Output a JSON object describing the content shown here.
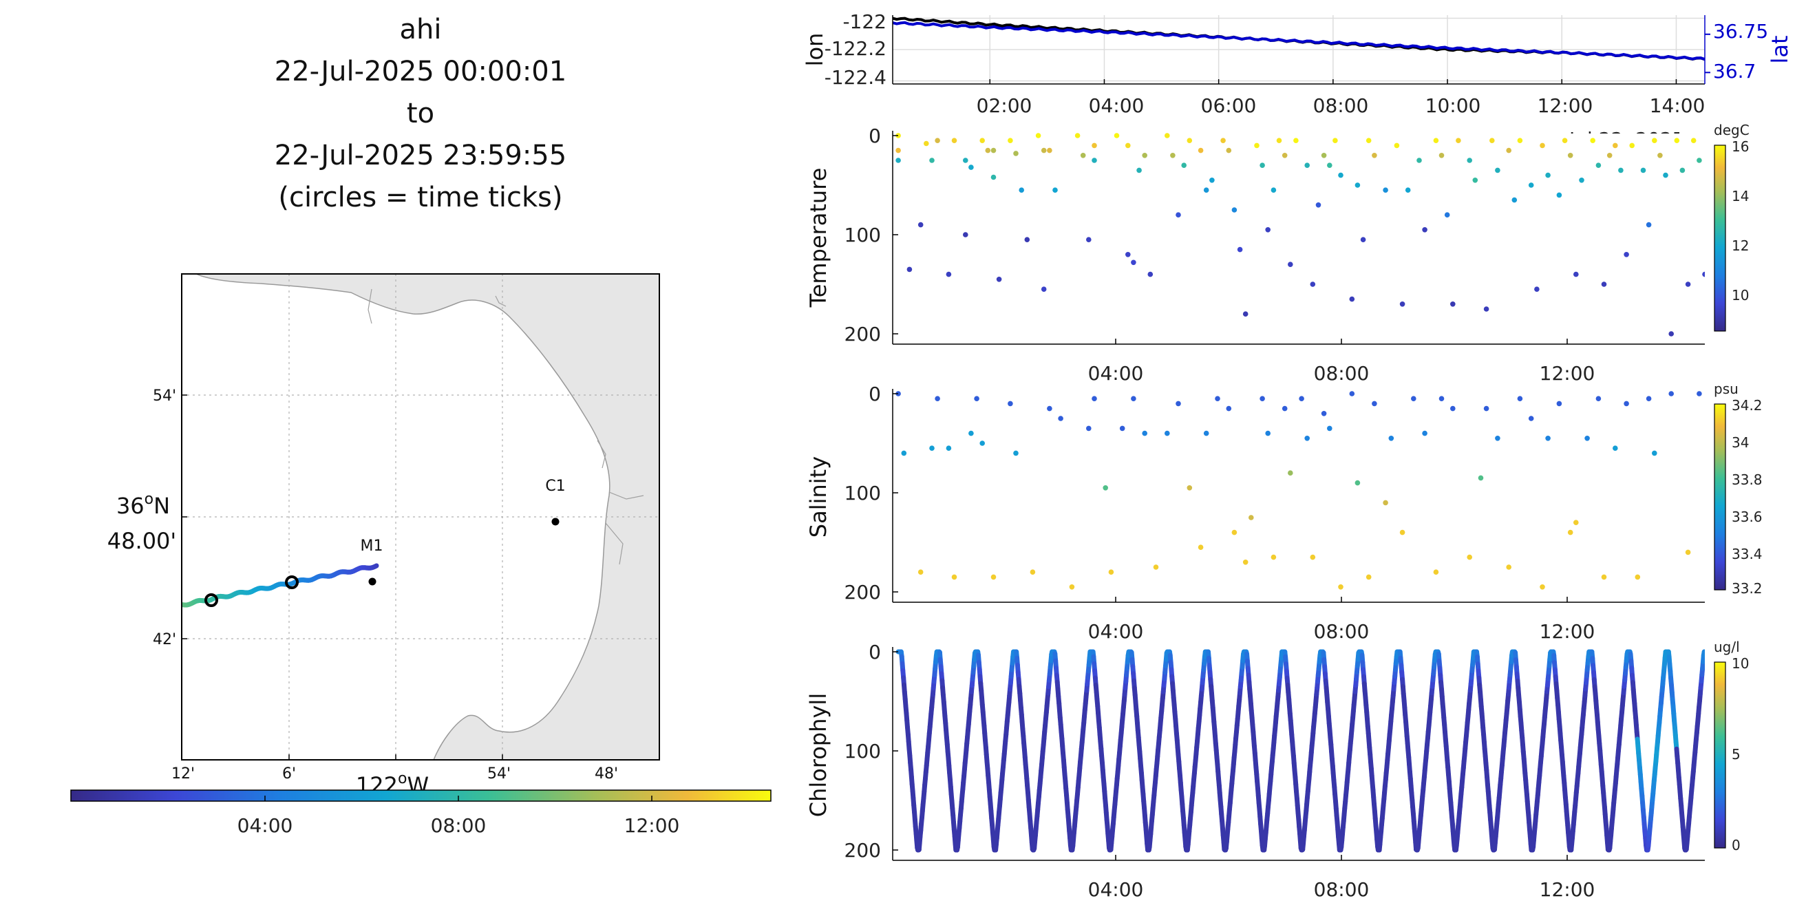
{
  "map_panel": {
    "title_lines": [
      "ahi",
      "22-Jul-2025 00:00:01",
      "to",
      "22-Jul-2025 23:59:55",
      "(circles = time ticks)"
    ],
    "lon_ticks": [
      "12'",
      "6'",
      "54'",
      "48'"
    ],
    "lon_axis_label": "122",
    "lon_axis_suffix": "W",
    "lat_ticks": [
      "54'",
      "42'"
    ],
    "lat_axis_label_line1": "36",
    "lat_axis_label_suffix": "N",
    "lat_axis_label_line2": "48.00'",
    "stations": [
      {
        "label": "M1"
      },
      {
        "label": "C1"
      }
    ],
    "time_colorbar": {
      "ticks": [
        "04:00",
        "08:00",
        "12:00"
      ]
    },
    "colors": {
      "land": "#e6e6e6",
      "coast": "#999999",
      "grid": "#b0b0b0"
    }
  },
  "chart_data": [
    {
      "type": "line",
      "title": "",
      "ylabel": "lon",
      "ylabel_right": "lat",
      "x_tick_labels": [
        "02:00",
        "04:00",
        "06:00",
        "08:00",
        "10:00",
        "12:00",
        "14:00"
      ],
      "x_partial_label": "Jul 22, 2025",
      "y_tick_labels": [
        "-122",
        "-122.2",
        "-122.4"
      ],
      "y_right_tick_labels": [
        "36.75",
        "36.7"
      ],
      "xlim": [
        0.3,
        14.5
      ],
      "ylim": [
        -122.42,
        -121.98
      ],
      "ylim_right": [
        36.685,
        36.775
      ],
      "grid": true,
      "series": [
        {
          "axis": "left",
          "color": "#000000",
          "x": [
            0.3,
            2,
            4,
            6,
            8,
            10,
            12,
            14.5
          ],
          "y": [
            -122.0,
            -122.04,
            -122.08,
            -122.12,
            -122.16,
            -122.2,
            -122.22,
            -122.26
          ]
        },
        {
          "axis": "right",
          "color": "#0000cc",
          "x": [
            0.3,
            2,
            4,
            6,
            8,
            10,
            12,
            14.5
          ],
          "y": [
            36.765,
            36.759,
            36.753,
            36.746,
            36.739,
            36.732,
            36.726,
            36.718
          ]
        }
      ]
    },
    {
      "type": "scatter",
      "ylabel": "Temperature",
      "x_tick_labels": [
        "04:00",
        "08:00",
        "12:00"
      ],
      "y_tick_labels": [
        "0",
        "100",
        "200"
      ],
      "xlim": [
        0,
        14.5
      ],
      "ylim": [
        210,
        0
      ],
      "colorbar": {
        "unit": "degC",
        "ticks": [
          "16",
          "14",
          "12",
          "10"
        ],
        "range": [
          8.5,
          16
        ]
      },
      "points": [
        [
          0.1,
          0,
          15.8
        ],
        [
          0.1,
          15,
          15
        ],
        [
          0.1,
          25,
          12
        ],
        [
          0.3,
          135,
          9.2
        ],
        [
          0.5,
          90,
          9.2
        ],
        [
          0.6,
          8,
          15.5
        ],
        [
          0.7,
          25,
          12.5
        ],
        [
          0.8,
          5,
          14.6
        ],
        [
          1.0,
          140,
          9.3
        ],
        [
          1.1,
          5,
          15.3
        ],
        [
          1.3,
          25,
          12.1
        ],
        [
          1.4,
          32,
          11.8
        ],
        [
          1.3,
          100,
          9.1
        ],
        [
          1.6,
          5,
          15.6
        ],
        [
          1.7,
          15,
          14.5
        ],
        [
          1.8,
          15,
          14.1
        ],
        [
          1.8,
          42,
          12.4
        ],
        [
          1.9,
          145,
          9.2
        ],
        [
          2.1,
          5,
          15.8
        ],
        [
          2.2,
          18,
          14
        ],
        [
          2.3,
          55,
          11.4
        ],
        [
          2.4,
          105,
          9.1
        ],
        [
          2.6,
          0,
          15.9
        ],
        [
          2.7,
          15,
          14.4
        ],
        [
          2.8,
          15,
          14.7
        ],
        [
          2.9,
          55,
          11.7
        ],
        [
          2.7,
          155,
          9.4
        ],
        [
          3.3,
          0,
          15.8
        ],
        [
          3.4,
          20,
          14
        ],
        [
          3.6,
          10,
          15.1
        ],
        [
          3.6,
          25,
          12.1
        ],
        [
          3.5,
          105,
          9.3
        ],
        [
          4.0,
          0,
          15.9
        ],
        [
          4.2,
          10,
          15.5
        ],
        [
          4.5,
          20,
          14
        ],
        [
          4.4,
          35,
          12.2
        ],
        [
          4.2,
          120,
          9.4
        ],
        [
          4.3,
          128,
          9.5
        ],
        [
          4.6,
          140,
          9.3
        ],
        [
          4.9,
          0,
          15.7
        ],
        [
          5.0,
          20,
          14.1
        ],
        [
          5.1,
          80,
          9.8
        ],
        [
          5.2,
          30,
          12.5
        ],
        [
          5.3,
          5,
          15.6
        ],
        [
          5.5,
          15,
          15
        ],
        [
          5.6,
          55,
          11.3
        ],
        [
          5.7,
          45,
          11.6
        ],
        [
          5.9,
          5,
          15.2
        ],
        [
          6.0,
          15,
          14.5
        ],
        [
          6.1,
          75,
          10.9
        ],
        [
          6.2,
          115,
          9.5
        ],
        [
          6.3,
          180,
          9.1
        ],
        [
          6.5,
          10,
          15.8
        ],
        [
          6.6,
          30,
          12.4
        ],
        [
          6.7,
          95,
          9.3
        ],
        [
          6.8,
          55,
          11.8
        ],
        [
          6.9,
          5,
          15.6
        ],
        [
          7.0,
          20,
          14.5
        ],
        [
          7.1,
          130,
          9.3
        ],
        [
          7.2,
          5,
          15.9
        ],
        [
          7.4,
          30,
          12.2
        ],
        [
          7.5,
          150,
          9.3
        ],
        [
          7.6,
          70,
          9.9
        ],
        [
          7.7,
          20,
          13.9
        ],
        [
          7.8,
          30,
          12.6
        ],
        [
          7.9,
          5,
          15.8
        ],
        [
          8.0,
          40,
          11.8
        ],
        [
          8.2,
          165,
          9.2
        ],
        [
          8.3,
          50,
          11.8
        ],
        [
          8.4,
          105,
          9.3
        ],
        [
          8.5,
          5,
          15.8
        ],
        [
          8.6,
          20,
          14.6
        ],
        [
          8.8,
          55,
          11.1
        ],
        [
          9.0,
          10,
          15.8
        ],
        [
          9.1,
          170,
          9.2
        ],
        [
          9.2,
          55,
          11.7
        ],
        [
          9.4,
          25,
          12.5
        ],
        [
          9.5,
          95,
          9.2
        ],
        [
          9.7,
          5,
          15.8
        ],
        [
          9.8,
          20,
          14.3
        ],
        [
          9.9,
          80,
          10.5
        ],
        [
          10.0,
          170,
          9.1
        ],
        [
          10.1,
          5,
          15.3
        ],
        [
          10.3,
          25,
          12.3
        ],
        [
          10.4,
          45,
          12.6
        ],
        [
          10.6,
          175,
          9.2
        ],
        [
          10.7,
          5,
          15.5
        ],
        [
          10.8,
          35,
          12.1
        ],
        [
          11.0,
          15,
          14.6
        ],
        [
          11.1,
          65,
          11.4
        ],
        [
          11.2,
          5,
          15.8
        ],
        [
          11.4,
          50,
          11.8
        ],
        [
          11.5,
          155,
          9.3
        ],
        [
          11.6,
          10,
          15.2
        ],
        [
          11.7,
          40,
          12
        ],
        [
          11.9,
          60,
          11.7
        ],
        [
          12.0,
          5,
          15.6
        ],
        [
          12.1,
          20,
          14.3
        ],
        [
          12.2,
          140,
          9.3
        ],
        [
          12.3,
          45,
          11.9
        ],
        [
          12.5,
          5,
          15.9
        ],
        [
          12.6,
          30,
          12.4
        ],
        [
          12.7,
          150,
          9.2
        ],
        [
          12.8,
          20,
          14.5
        ],
        [
          12.9,
          10,
          15.1
        ],
        [
          13.0,
          35,
          12.2
        ],
        [
          13.1,
          120,
          9.4
        ],
        [
          13.2,
          10,
          15.8
        ],
        [
          13.4,
          35,
          12.1
        ],
        [
          13.5,
          90,
          10.4
        ],
        [
          13.6,
          5,
          15.8
        ],
        [
          13.7,
          20,
          14.4
        ],
        [
          13.8,
          40,
          11.9
        ],
        [
          13.9,
          200,
          9.1
        ],
        [
          14.0,
          5,
          15.9
        ],
        [
          14.1,
          35,
          12.5
        ],
        [
          14.2,
          150,
          9.3
        ],
        [
          14.3,
          5,
          15.8
        ],
        [
          14.4,
          25,
          12.7
        ],
        [
          14.5,
          140,
          9.4
        ]
      ]
    },
    {
      "type": "scatter",
      "ylabel": "Salinity",
      "x_tick_labels": [
        "04:00",
        "08:00",
        "12:00"
      ],
      "y_tick_labels": [
        "0",
        "100",
        "200"
      ],
      "xlim": [
        0,
        14.5
      ],
      "ylim": [
        210,
        0
      ],
      "colorbar": {
        "unit": "psu",
        "ticks": [
          "34.2",
          "34",
          "33.8",
          "33.6",
          "33.4",
          "33.2"
        ],
        "range": [
          33.2,
          34.2
        ]
      },
      "points": [
        [
          0.1,
          0,
          33.4
        ],
        [
          0.2,
          60,
          33.6
        ],
        [
          0.5,
          180,
          34.1
        ],
        [
          0.7,
          55,
          33.6
        ],
        [
          0.8,
          5,
          33.4
        ],
        [
          1.0,
          55,
          33.6
        ],
        [
          1.1,
          185,
          34.1
        ],
        [
          1.4,
          40,
          33.6
        ],
        [
          1.5,
          5,
          33.4
        ],
        [
          1.6,
          50,
          33.6
        ],
        [
          1.8,
          185,
          34.1
        ],
        [
          2.1,
          10,
          33.4
        ],
        [
          2.2,
          60,
          33.6
        ],
        [
          2.5,
          180,
          34.1
        ],
        [
          2.8,
          15,
          33.4
        ],
        [
          3.0,
          25,
          33.4
        ],
        [
          3.2,
          195,
          34.1
        ],
        [
          3.5,
          35,
          33.4
        ],
        [
          3.6,
          5,
          33.4
        ],
        [
          3.8,
          95,
          33.8
        ],
        [
          3.9,
          180,
          34.1
        ],
        [
          4.1,
          35,
          33.4
        ],
        [
          4.3,
          5,
          33.4
        ],
        [
          4.5,
          40,
          33.5
        ],
        [
          4.7,
          175,
          34.1
        ],
        [
          4.9,
          40,
          33.5
        ],
        [
          5.1,
          10,
          33.4
        ],
        [
          5.3,
          95,
          34
        ],
        [
          5.5,
          155,
          34.1
        ],
        [
          5.6,
          40,
          33.5
        ],
        [
          5.8,
          5,
          33.4
        ],
        [
          6.0,
          15,
          33.4
        ],
        [
          6.1,
          140,
          34.1
        ],
        [
          6.3,
          170,
          34.1
        ],
        [
          6.4,
          125,
          34
        ],
        [
          6.6,
          5,
          33.4
        ],
        [
          6.7,
          40,
          33.5
        ],
        [
          6.8,
          165,
          34.1
        ],
        [
          7.0,
          15,
          33.4
        ],
        [
          7.1,
          80,
          33.9
        ],
        [
          7.3,
          5,
          33.4
        ],
        [
          7.4,
          45,
          33.5
        ],
        [
          7.5,
          165,
          34.1
        ],
        [
          7.7,
          20,
          33.4
        ],
        [
          7.8,
          35,
          33.5
        ],
        [
          8.0,
          195,
          34.1
        ],
        [
          8.2,
          0,
          33.4
        ],
        [
          8.3,
          90,
          33.8
        ],
        [
          8.5,
          185,
          34.1
        ],
        [
          8.6,
          10,
          33.4
        ],
        [
          8.8,
          110,
          34
        ],
        [
          8.9,
          45,
          33.5
        ],
        [
          9.1,
          140,
          34.1
        ],
        [
          9.3,
          5,
          33.4
        ],
        [
          9.5,
          40,
          33.5
        ],
        [
          9.7,
          180,
          34.1
        ],
        [
          9.8,
          5,
          33.4
        ],
        [
          10.0,
          15,
          33.4
        ],
        [
          10.3,
          165,
          34.1
        ],
        [
          10.5,
          85,
          33.8
        ],
        [
          10.6,
          15,
          33.4
        ],
        [
          10.8,
          45,
          33.5
        ],
        [
          11.0,
          175,
          34.1
        ],
        [
          11.2,
          5,
          33.4
        ],
        [
          11.4,
          25,
          33.4
        ],
        [
          11.6,
          195,
          34.1
        ],
        [
          11.7,
          45,
          33.5
        ],
        [
          11.9,
          10,
          33.4
        ],
        [
          12.1,
          140,
          34.1
        ],
        [
          12.2,
          130,
          34.1
        ],
        [
          12.4,
          45,
          33.5
        ],
        [
          12.6,
          5,
          33.4
        ],
        [
          12.7,
          185,
          34.1
        ],
        [
          12.9,
          55,
          33.6
        ],
        [
          13.1,
          10,
          33.4
        ],
        [
          13.3,
          185,
          34.1
        ],
        [
          13.5,
          5,
          33.4
        ],
        [
          13.6,
          60,
          33.6
        ],
        [
          13.9,
          0,
          33.4
        ],
        [
          14.2,
          160,
          34.1
        ],
        [
          14.4,
          0,
          33.4
        ]
      ]
    },
    {
      "type": "line",
      "ylabel": "Chlorophyll",
      "x_tick_labels": [
        "04:00",
        "08:00",
        "12:00"
      ],
      "y_tick_labels": [
        "0",
        "100",
        "200"
      ],
      "xlim": [
        0,
        14.5
      ],
      "ylim": [
        210,
        0
      ],
      "colorbar": {
        "unit": "ug/l",
        "ticks": [
          "10",
          "5",
          "0"
        ],
        "range": [
          0,
          10
        ]
      },
      "profile": {
        "start": 0.1,
        "period": 0.685,
        "cycles": 21,
        "depth": 200
      }
    }
  ]
}
